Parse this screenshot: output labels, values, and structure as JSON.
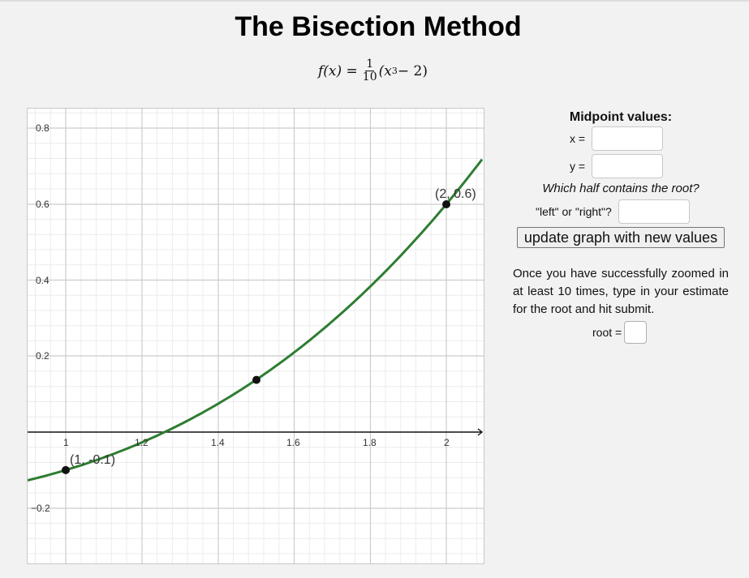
{
  "header": {
    "title": "The Bisection Method",
    "formula": {
      "lhs": "f(x) =",
      "frac_num": "1",
      "frac_den": "10",
      "rhs_open": "(x",
      "exponent": "3",
      "rhs_close": " − 2)"
    }
  },
  "graph": {
    "x_ticks": [
      "1",
      "1.2",
      "1.4",
      "1.6",
      "1.8",
      "2"
    ],
    "y_ticks": [
      "0.8",
      "0.6",
      "0.4",
      "0.2",
      "−0.2"
    ],
    "curve_color": "#2e7d32",
    "point_labels": {
      "left": "(1, -0.1)",
      "right": "(2, 0.6)"
    }
  },
  "chart_data": {
    "type": "line",
    "title": "f(x) = (1/10)(x^3 - 2)",
    "xlabel": "",
    "ylabel": "",
    "xlim": [
      0.9,
      2.1
    ],
    "ylim": [
      -0.34,
      0.85
    ],
    "grid": true,
    "series": [
      {
        "name": "f(x)",
        "x": [
          0.9,
          1.0,
          1.1,
          1.2,
          1.3,
          1.4,
          1.5,
          1.6,
          1.7,
          1.8,
          1.9,
          2.0,
          2.1
        ],
        "values": [
          -0.1271,
          -0.1,
          -0.0669,
          -0.0272,
          0.0197,
          0.0744,
          0.1375,
          0.2096,
          0.2913,
          0.3832,
          0.4859,
          0.6,
          0.7261
        ]
      }
    ],
    "points": [
      {
        "x": 1,
        "y": -0.1,
        "label": "(1, -0.1)"
      },
      {
        "x": 1.5,
        "y": 0.1375,
        "label": ""
      },
      {
        "x": 2,
        "y": 0.6,
        "label": "(2, 0.6)"
      }
    ],
    "x_ticks": [
      1,
      1.2,
      1.4,
      1.6,
      1.8,
      2
    ],
    "y_ticks": [
      -0.2,
      0.2,
      0.4,
      0.6,
      0.8
    ]
  },
  "panel": {
    "heading": "Midpoint values:",
    "x_label": "x =",
    "x_value": "",
    "y_label": "y =",
    "y_value": "",
    "question": "Which half contains the root?",
    "half_label": "\"left\" or \"right\"?",
    "half_value": "",
    "update_button": "update graph with new values",
    "instructions": "Once you have successfully zoomed in at least 10 times, type in your estimate for the root and hit submit.",
    "root_label": "root =",
    "root_value": ""
  }
}
